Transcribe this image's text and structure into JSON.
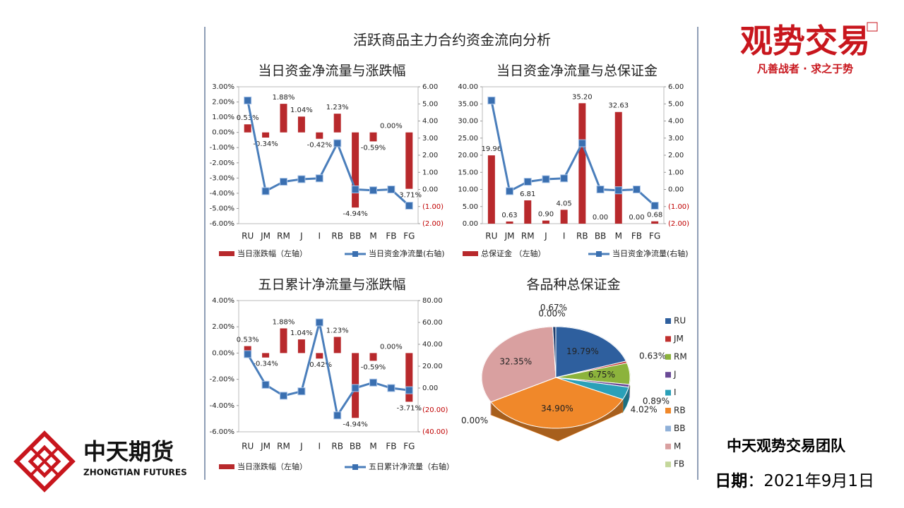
{
  "slide_title": "活跃商品主力合约资金流向分析",
  "brand_logo": {
    "name": "观势交易",
    "slogan": "凡善战者 · 求之于势"
  },
  "company_logo": {
    "name": "中天期货",
    "english": "ZHONGTIAN FUTURES"
  },
  "team": "中天观势交易团队",
  "date_label": "日期",
  "date": "：2021年9月1日",
  "chart_data": [
    {
      "type": "combo",
      "title": "当日资金净流量与涨跌幅",
      "categories": [
        "RU",
        "JM",
        "RM",
        "J",
        "I",
        "RB",
        "BB",
        "M",
        "FB",
        "FG"
      ],
      "series": [
        {
          "name": "当日涨跌幅（左轴）",
          "type": "bar",
          "axis": "y",
          "color": "#b8292c",
          "values": [
            0.53,
            -0.34,
            1.88,
            1.04,
            -0.42,
            1.23,
            -4.94,
            -0.59,
            0.0,
            -3.71
          ],
          "value_labels": [
            "0.53%",
            "-0.34%",
            "1.88%",
            "1.04%",
            "-0.42%",
            "1.23%",
            "-4.94%",
            "-0.59%",
            "0.00%",
            "-3.71%"
          ]
        },
        {
          "name": "当日资金净流量(右轴)",
          "type": "line",
          "axis": "y2",
          "color": "#4a7ebb",
          "values": [
            5.2,
            -0.1,
            0.45,
            0.6,
            0.65,
            2.7,
            0.0,
            -0.05,
            0.0,
            -0.95
          ]
        }
      ],
      "ylim": [
        -6,
        3
      ],
      "yticks": [
        {
          "value": 3,
          "label": "3.00%"
        },
        {
          "value": 2,
          "label": "2.00%"
        },
        {
          "value": 1,
          "label": "1.00%"
        },
        {
          "value": 0,
          "label": "0.00%"
        },
        {
          "value": -1,
          "label": "-1.00%"
        },
        {
          "value": -2,
          "label": "-2.00%"
        },
        {
          "value": -3,
          "label": "-3.00%"
        },
        {
          "value": -4,
          "label": "-4.00%"
        },
        {
          "value": -5,
          "label": "-5.00%"
        },
        {
          "value": -6,
          "label": "-6.00%"
        }
      ],
      "y2lim": [
        -2,
        6
      ],
      "y2ticks": [
        {
          "value": 6,
          "label": "6.00"
        },
        {
          "value": 5,
          "label": "5.00"
        },
        {
          "value": 4,
          "label": "4.00"
        },
        {
          "value": 3,
          "label": "3.00"
        },
        {
          "value": 2,
          "label": "2.00"
        },
        {
          "value": 1,
          "label": "1.00"
        },
        {
          "value": 0,
          "label": "0.00"
        },
        {
          "value": -1,
          "label": "(1.00)"
        },
        {
          "value": -2,
          "label": "(2.00)"
        }
      ],
      "y2_negative_color": "#c00000",
      "plot_border": true
    },
    {
      "type": "combo",
      "title": "当日资金净流量与总保证金",
      "categories": [
        "RU",
        "JM",
        "RM",
        "J",
        "I",
        "RB",
        "BB",
        "M",
        "FB",
        "FG"
      ],
      "series": [
        {
          "name": "总保证金 （左轴）",
          "type": "bar",
          "axis": "y",
          "color": "#b8292c",
          "values": [
            19.96,
            0.63,
            6.81,
            0.9,
            4.05,
            35.2,
            0.0,
            32.63,
            0.0,
            0.68
          ],
          "value_labels": [
            "19.96",
            "0.63",
            "6.81",
            "0.90",
            "4.05",
            "35.20",
            "0.00",
            "32.63",
            "0.00",
            "0.68"
          ]
        },
        {
          "name": "当日资金净流量(右轴)",
          "type": "line",
          "axis": "y2",
          "color": "#4a7ebb",
          "values": [
            5.2,
            -0.1,
            0.45,
            0.6,
            0.65,
            2.7,
            0.0,
            -0.05,
            0.0,
            -0.95
          ]
        }
      ],
      "ylim": [
        0,
        40
      ],
      "yticks": [
        {
          "value": 40,
          "label": "40.00"
        },
        {
          "value": 35,
          "label": "35.00"
        },
        {
          "value": 30,
          "label": "30.00"
        },
        {
          "value": 25,
          "label": "25.00"
        },
        {
          "value": 20,
          "label": "20.00"
        },
        {
          "value": 15,
          "label": "15.00"
        },
        {
          "value": 10,
          "label": "10.00"
        },
        {
          "value": 5,
          "label": "5.00"
        },
        {
          "value": 0,
          "label": "0.00"
        }
      ],
      "y2lim": [
        -2,
        6
      ],
      "y2ticks": [
        {
          "value": 6,
          "label": "6.00"
        },
        {
          "value": 5,
          "label": "5.00"
        },
        {
          "value": 4,
          "label": "4.00"
        },
        {
          "value": 3,
          "label": "3.00"
        },
        {
          "value": 2,
          "label": "2.00"
        },
        {
          "value": 1,
          "label": "1.00"
        },
        {
          "value": 0,
          "label": "0.00"
        },
        {
          "value": -1,
          "label": "(1.00)"
        },
        {
          "value": -2,
          "label": "(2.00)"
        }
      ],
      "y2_negative_color": "#c00000",
      "plot_border": true
    },
    {
      "type": "combo",
      "title": "五日累计净流量与涨跌幅",
      "categories": [
        "RU",
        "JM",
        "RM",
        "J",
        "I",
        "RB",
        "BB",
        "M",
        "FB",
        "FG"
      ],
      "series": [
        {
          "name": "当日涨跌幅（左轴）",
          "type": "bar",
          "axis": "y",
          "color": "#b8292c",
          "values": [
            0.53,
            -0.34,
            1.88,
            1.04,
            -0.42,
            1.23,
            -4.94,
            -0.59,
            0.0,
            -3.71
          ],
          "value_labels": [
            "0.53%",
            "-0.34%",
            "1.88%",
            "1.04%",
            "-0.42%",
            "1.23%",
            "-4.94%",
            "-0.59%",
            "0.00%",
            "-3.71%"
          ]
        },
        {
          "name": "五日累计净流量（右轴）",
          "type": "line",
          "axis": "y2",
          "color": "#4a7ebb",
          "values": [
            31,
            3,
            -7,
            -3,
            60,
            -25,
            0,
            5,
            0,
            -2
          ]
        }
      ],
      "ylim": [
        -6,
        4
      ],
      "yticks": [
        {
          "value": 4,
          "label": "4.00%"
        },
        {
          "value": 2,
          "label": "2.00%"
        },
        {
          "value": 0,
          "label": "0.00%"
        },
        {
          "value": -2,
          "label": "-2.00%"
        },
        {
          "value": -4,
          "label": "-4.00%"
        },
        {
          "value": -6,
          "label": "-6.00%"
        }
      ],
      "y2lim": [
        -40,
        80
      ],
      "y2ticks": [
        {
          "value": 80,
          "label": "80.00"
        },
        {
          "value": 60,
          "label": "60.00"
        },
        {
          "value": 40,
          "label": "40.00"
        },
        {
          "value": 20,
          "label": "20.00"
        },
        {
          "value": 0,
          "label": "0.00"
        },
        {
          "value": -20,
          "label": "(20.00)"
        },
        {
          "value": -40,
          "label": "(40.00)"
        }
      ],
      "y2_negative_color": "#c00000",
      "plot_border": true
    },
    {
      "type": "pie",
      "title": "各品种总保证金",
      "categories": [
        "RU",
        "JM",
        "RM",
        "J",
        "I",
        "RB",
        "BB",
        "M",
        "FB",
        null
      ],
      "values": [
        19.79,
        0.63,
        6.75,
        0.89,
        4.02,
        34.9,
        0.0,
        32.35,
        0.0,
        0.67
      ],
      "value_labels": [
        "19.79%",
        "0.63%",
        "6.75%",
        "0.89%",
        "4.02%",
        "34.90%",
        "0.00%",
        "32.35%",
        "0.00%",
        "0.67%"
      ],
      "colors": [
        "#2e5f9e",
        "#c0302e",
        "#8cb33c",
        "#6a4a96",
        "#2aa0b8",
        "#f0882a",
        "#8fb0d8",
        "#d9a0a0",
        "#c4d79b",
        "#1f3d6e"
      ]
    }
  ]
}
